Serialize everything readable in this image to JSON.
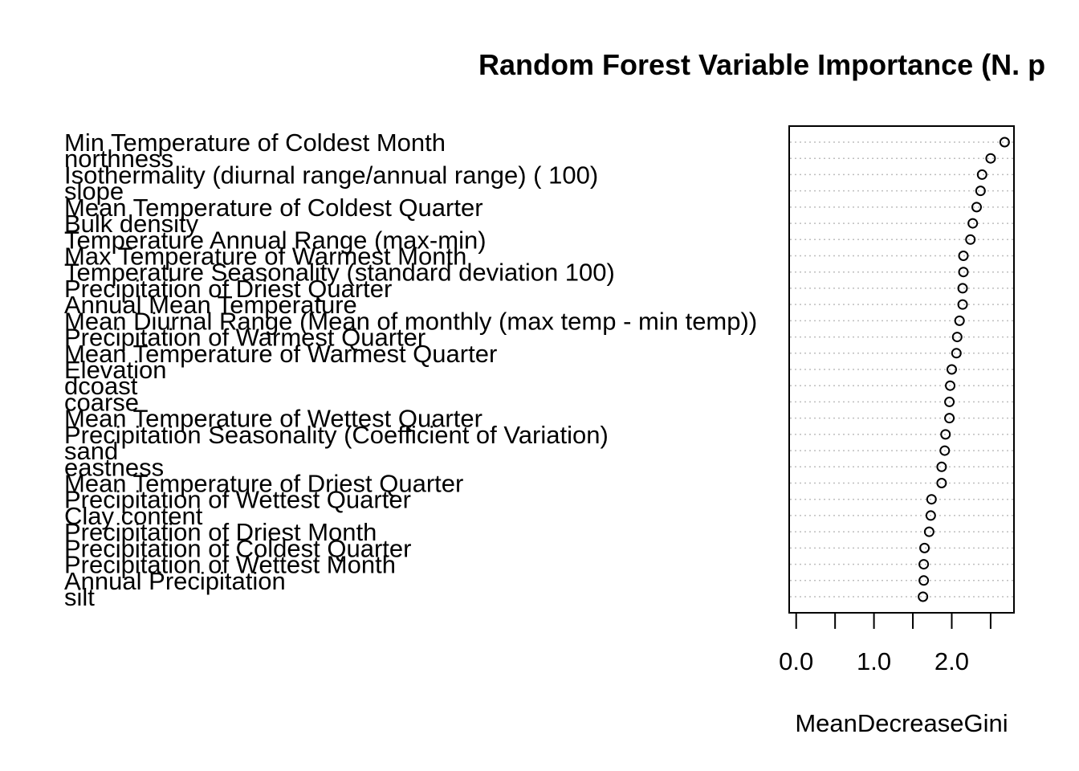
{
  "chart_data": {
    "type": "scatter",
    "title": "Random Forest Variable Importance (N. p",
    "xlabel": "MeanDecreaseGini",
    "ylabel": "",
    "xlim": [
      -0.09,
      2.8
    ],
    "xticks": [
      0,
      0.5,
      1.0,
      1.5,
      2.0,
      2.5
    ],
    "xtick_labels": [
      "0.0",
      "",
      "1.0",
      "",
      "2.0",
      ""
    ],
    "grid": "dotted horizontal lines per variable",
    "legend": "none",
    "marker": "open circle",
    "colors": {
      "points": "#000000",
      "grid": "#bebebe",
      "axis": "#000000"
    },
    "categories": [
      "Min Temperature of Coldest Month",
      "northness",
      "Isothermality (diurnal range/annual range) (  100)",
      "slope",
      "Mean Temperature of Coldest Quarter",
      "Bulk density",
      "Temperature Annual Range (max-min)",
      "Max Temperature of Warmest Month",
      "Temperature Seasonality (standard deviation  100)",
      "Precipitation of Driest Quarter",
      "Annual Mean Temperature",
      "Mean Diurnal Range (Mean of monthly (max temp - min temp))",
      "Precipitation of Warmest Quarter",
      "Mean Temperature of Warmest Quarter",
      "Elevation",
      "dcoast",
      "coarse",
      "Mean Temperature of Wettest Quarter",
      "Precipitation Seasonality (Coefficient of Variation)",
      "sand",
      "eastness",
      "Mean Temperature of Driest Quarter",
      "Precipitation of Wettest Quarter",
      "Clay content",
      "Precipitation of Driest Month",
      "Precipitation of Coldest Quarter",
      "Precipitation of Wettest Month",
      "Annual Precipitation",
      "silt"
    ],
    "values": [
      2.68,
      2.5,
      2.39,
      2.37,
      2.32,
      2.27,
      2.24,
      2.15,
      2.15,
      2.14,
      2.14,
      2.1,
      2.07,
      2.06,
      2.0,
      1.98,
      1.97,
      1.97,
      1.92,
      1.91,
      1.87,
      1.87,
      1.74,
      1.73,
      1.71,
      1.65,
      1.64,
      1.64,
      1.63
    ]
  }
}
